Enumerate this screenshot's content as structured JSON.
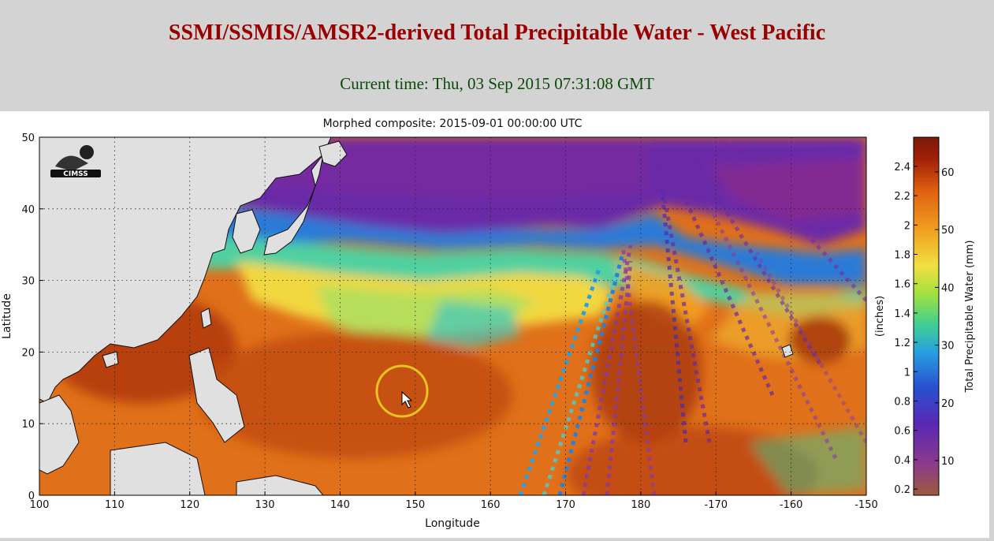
{
  "header": {
    "title": "SSMI/SSMIS/AMSR2-derived Total Precipitable Water - West Pacific",
    "current_time": "Current time: Thu, 03 Sep 2015 07:31:08 GMT"
  },
  "map": {
    "title": "Morphed composite: 2015-09-01 00:00:00 UTC",
    "xlabel": "Longitude",
    "ylabel": "Latitude",
    "x_ticks": [
      "100",
      "110",
      "120",
      "130",
      "140",
      "150",
      "160",
      "170",
      "180",
      "-170",
      "-160",
      "-150"
    ],
    "y_ticks": [
      "0",
      "10",
      "20",
      "30",
      "40",
      "50"
    ],
    "logo_text": "CIMSS",
    "grid": "dotted"
  },
  "colorbar": {
    "label_mm": "Total Precipitable Water (mm)",
    "label_inches": "(inches)",
    "mm_ticks": [
      "10",
      "20",
      "30",
      "40",
      "50",
      "60"
    ],
    "inch_ticks": [
      "0.2",
      "0.4",
      "0.6",
      "0.8",
      "1",
      "1.2",
      "1.4",
      "1.6",
      "1.8",
      "2",
      "2.2",
      "2.4"
    ],
    "colors": [
      "#9c5a3c",
      "#8a3a8c",
      "#5a28b4",
      "#2850d0",
      "#28a0e0",
      "#40d090",
      "#a0e040",
      "#f0e040",
      "#f0a020",
      "#e06010",
      "#a02008",
      "#7a1a08"
    ]
  },
  "cursor": {
    "ring_color": "#e6c420"
  }
}
